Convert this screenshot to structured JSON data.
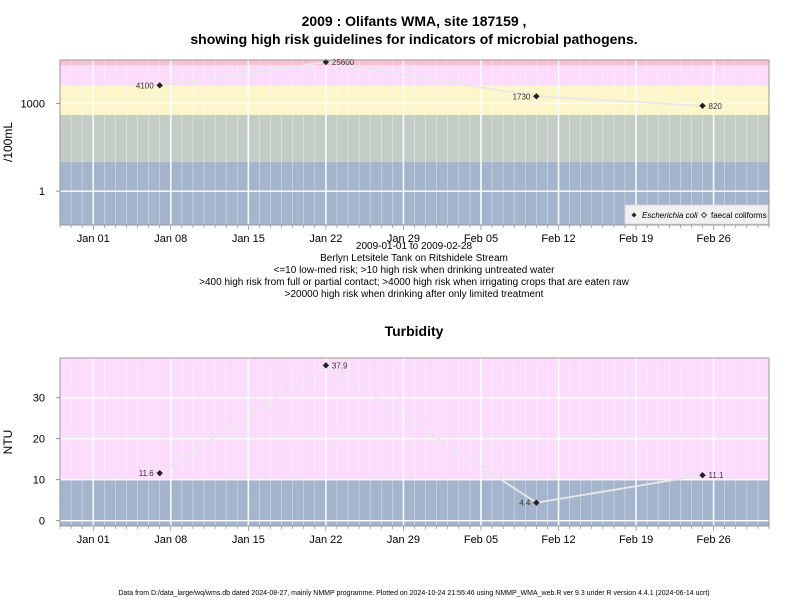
{
  "chart_data": [
    {
      "type": "line",
      "title_line1": "2009 : Olifants WMA, site 187159 ,",
      "title_line2": "showing high risk guidelines for indicators of microbial pathogens.",
      "ylabel": "/100mL",
      "y_scale": "log10",
      "ylim": [
        0.07,
        30000
      ],
      "y_ticks": [
        {
          "value": 1,
          "label": "1"
        },
        {
          "value": 1000,
          "label": "1000"
        }
      ],
      "xlim": [
        "2008-12-29",
        "2009-03-03"
      ],
      "x_ticks": [
        {
          "date": "2009-01-01",
          "label": "Jan 01"
        },
        {
          "date": "2009-01-08",
          "label": "Jan 08"
        },
        {
          "date": "2009-01-15",
          "label": "Jan 15"
        },
        {
          "date": "2009-01-22",
          "label": "Jan 22"
        },
        {
          "date": "2009-01-29",
          "label": "Jan 29"
        },
        {
          "date": "2009-02-05",
          "label": "Feb 05"
        },
        {
          "date": "2009-02-12",
          "label": "Feb 12"
        },
        {
          "date": "2009-02-19",
          "label": "Feb 19"
        },
        {
          "date": "2009-02-26",
          "label": "Feb 26"
        }
      ],
      "grid": true,
      "risk_bands": [
        {
          "from": 0.07,
          "to": 10,
          "color": "#a3b4cc"
        },
        {
          "from": 10,
          "to": 400,
          "color": "#c3cdc5"
        },
        {
          "from": 400,
          "to": 4000,
          "color": "#fdf6cb"
        },
        {
          "from": 4000,
          "to": 20000,
          "color": "#fcdcfc"
        },
        {
          "from": 20000,
          "to": 30000,
          "color": "#fbbfd0"
        }
      ],
      "series": [
        {
          "name": "Escherichia coli",
          "line_color": "#e8e8e8",
          "points": [
            {
              "x": "2009-01-07",
              "y": 4100,
              "label": "4100",
              "label_side": "left"
            },
            {
              "x": "2009-01-22",
              "y": 25600,
              "label": "25600",
              "label_side": "right"
            },
            {
              "x": "2009-02-10",
              "y": 1730,
              "label": "1730",
              "label_side": "left"
            },
            {
              "x": "2009-02-25",
              "y": 820,
              "label": "820",
              "label_side": "right"
            }
          ]
        }
      ],
      "legend": {
        "placement": "bottom-right",
        "entries": [
          {
            "label": "Escherichia coli",
            "marker": "filled-diamond",
            "italic": true
          },
          {
            "label": "faecal coliforms",
            "marker": "open-diamond",
            "italic": false
          }
        ]
      },
      "annotations": [
        "2009-01-01 to 2009-02-28",
        "Berlyn Letsitele Tank on Ritshidele Stream",
        "<=10 low-med risk; >10 high risk when drinking untreated water",
        ">400 high risk from full or partial contact; >4000 high risk when irrigating crops that are eaten raw",
        ">20000 high risk when drinking after only limited treatment"
      ]
    },
    {
      "type": "line",
      "title": "Turbidity",
      "ylabel": "NTU",
      "ylim": [
        -1.3,
        39.7
      ],
      "y_ticks": [
        {
          "value": 0,
          "label": "0"
        },
        {
          "value": 10,
          "label": "10"
        },
        {
          "value": 20,
          "label": "20"
        },
        {
          "value": 30,
          "label": "30"
        }
      ],
      "xlim": [
        "2008-12-29",
        "2009-03-03"
      ],
      "x_ticks": [
        {
          "date": "2009-01-01",
          "label": "Jan 01"
        },
        {
          "date": "2009-01-08",
          "label": "Jan 08"
        },
        {
          "date": "2009-01-15",
          "label": "Jan 15"
        },
        {
          "date": "2009-01-22",
          "label": "Jan 22"
        },
        {
          "date": "2009-01-29",
          "label": "Jan 29"
        },
        {
          "date": "2009-02-05",
          "label": "Feb 05"
        },
        {
          "date": "2009-02-12",
          "label": "Feb 12"
        },
        {
          "date": "2009-02-19",
          "label": "Feb 19"
        },
        {
          "date": "2009-02-26",
          "label": "Feb 26"
        }
      ],
      "grid": true,
      "risk_bands": [
        {
          "from": -1.3,
          "to": 10,
          "color": "#a3b4cc"
        },
        {
          "from": 10,
          "to": 39.7,
          "color": "#fcdcfc"
        }
      ],
      "series": [
        {
          "line_color": "#e8e8e8",
          "points": [
            {
              "x": "2009-01-07",
              "y": 11.6,
              "label": "11.6",
              "label_side": "left"
            },
            {
              "x": "2009-01-22",
              "y": 37.9,
              "label": "37.9",
              "label_side": "right"
            },
            {
              "x": "2009-02-10",
              "y": 4.4,
              "label": "4.4",
              "label_side": "left"
            },
            {
              "x": "2009-02-25",
              "y": 11.1,
              "label": "11.1",
              "label_side": "right"
            }
          ]
        }
      ]
    }
  ],
  "footer": "Data from D:/data_large/wq/wms.db dated 2024-08-27, mainly NMMP programme. Plotted on 2024-10-24 21:55:46 using NMMP_WMA_web.R ver 9.3 under R version 4.4.1 (2024-06-14 ucrt)"
}
